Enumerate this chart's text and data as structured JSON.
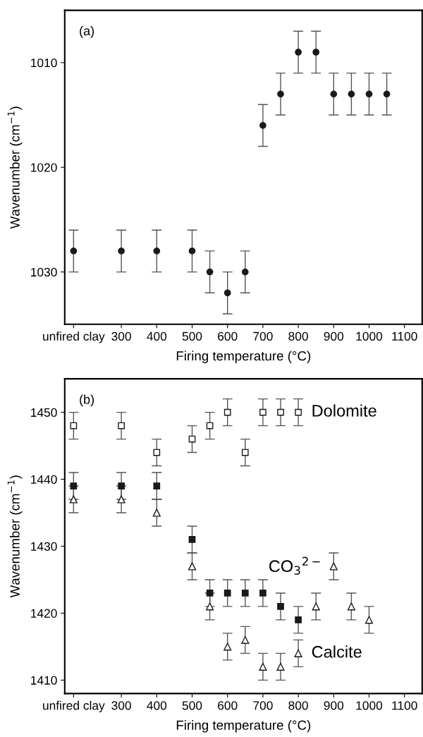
{
  "chart_data": [
    {
      "type": "scatter",
      "xlabel": "Firing temperature (°C)",
      "ylabel": "Wavenumber (cm$^{−1}$)",
      "annotations": [
        "(a)"
      ],
      "xlim": [
        140,
        1150
      ],
      "ylim": [
        1035,
        1005
      ],
      "xticks": [
        {
          "value": 165,
          "label": "unfired clay"
        },
        300,
        400,
        500,
        600,
        700,
        800,
        900,
        1000,
        1100
      ],
      "yticks": [
        1010,
        1020,
        1030
      ],
      "grid": false,
      "legend": false,
      "series": [
        {
          "color": "#1a1a1a",
          "marker": "circle",
          "x": [
            165,
            300,
            400,
            500,
            550,
            600,
            650,
            700,
            750,
            800,
            850,
            900,
            950,
            1000,
            1050
          ],
          "values": [
            1028,
            1028,
            1028,
            1028,
            1030,
            1032,
            1030,
            1016,
            1013,
            1009,
            1009,
            1013,
            1013,
            1013,
            1013
          ],
          "errors": [
            2,
            2,
            2,
            2,
            2,
            2,
            2,
            2,
            2,
            2,
            2,
            2,
            2,
            2,
            2
          ]
        }
      ]
    },
    {
      "type": "scatter",
      "xlabel": "Firing temperature (°C)",
      "ylabel": "Wavenumber (cm$^{−1}$)",
      "annotations": [
        "(b)",
        "Dolomite",
        "CO$_{3}$$^{2−}$",
        "Calcite"
      ],
      "xlim": [
        140,
        1150
      ],
      "ylim": [
        1408,
        1455
      ],
      "xticks": [
        {
          "value": 165,
          "label": "unfired clay"
        },
        300,
        400,
        500,
        600,
        700,
        800,
        900,
        1000,
        1100
      ],
      "yticks": [
        1410,
        1420,
        1430,
        1440,
        1450
      ],
      "grid": false,
      "legend": false,
      "series": [
        {
          "color": "#ffffff",
          "marker": "square",
          "x": [
            165,
            300,
            400,
            500,
            550,
            600,
            650,
            700,
            750,
            800
          ],
          "values": [
            1448,
            1448,
            1444,
            1446,
            1448,
            1450,
            1444,
            1450,
            1450,
            1450
          ],
          "errors": [
            2,
            2,
            2,
            2,
            2,
            2,
            2,
            2,
            2,
            2
          ]
        },
        {
          "color": "#1a1a1a",
          "marker": "square",
          "x": [
            165,
            300,
            400,
            500,
            550,
            600,
            650,
            700,
            750,
            800
          ],
          "values": [
            1439,
            1439,
            1439,
            1431,
            1423,
            1423,
            1423,
            1423,
            1421,
            1419
          ],
          "errors": [
            2,
            2,
            2,
            2,
            2,
            2,
            2,
            2,
            2,
            2
          ]
        },
        {
          "color": "#ffffff",
          "marker": "triangle",
          "x": [
            165,
            300,
            400,
            500,
            550,
            600,
            650,
            700,
            750,
            800,
            850,
            900,
            950,
            1000
          ],
          "values": [
            1437,
            1437,
            1435,
            1427,
            1421,
            1415,
            1416,
            1412,
            1412,
            1414,
            1421,
            1427,
            1421,
            1419
          ],
          "errors": [
            2,
            2,
            2,
            2,
            2,
            2,
            2,
            2,
            2,
            2,
            2,
            2,
            2,
            2
          ]
        }
      ]
    }
  ]
}
